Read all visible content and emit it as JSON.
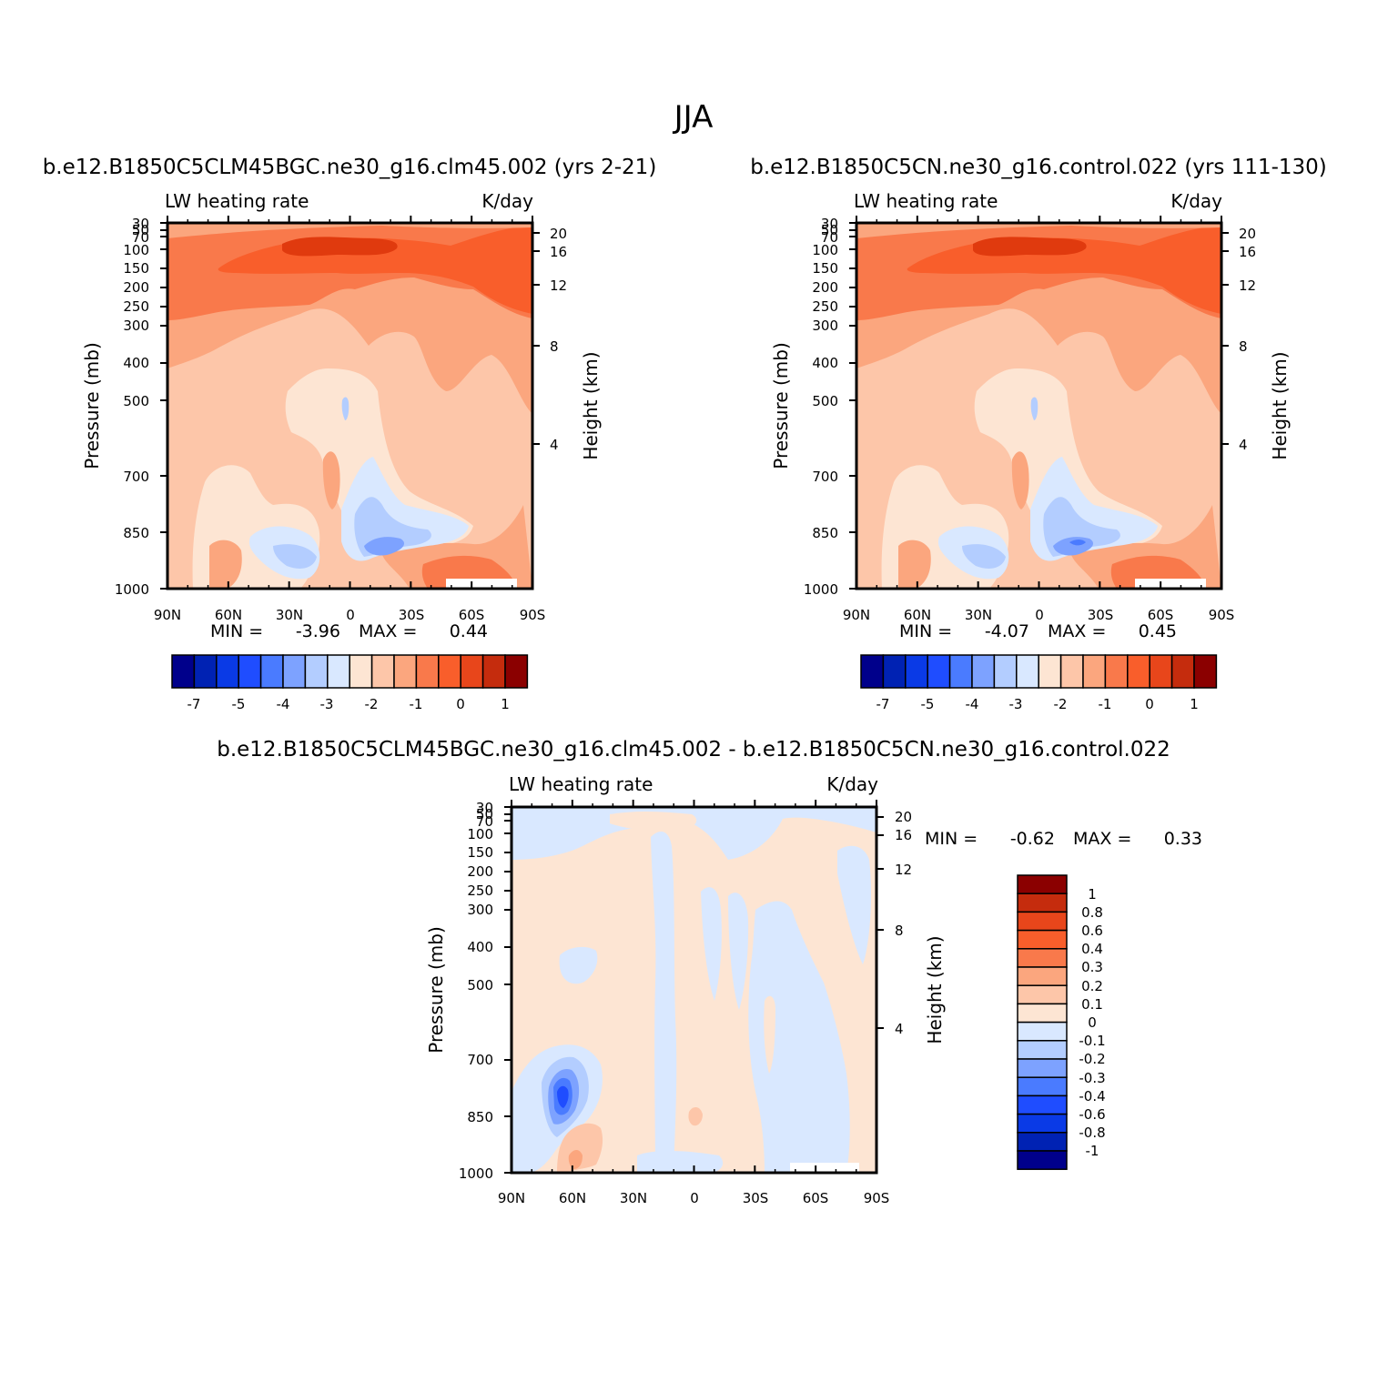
{
  "figure": {
    "season": "JJA",
    "colors": {
      "cold": [
        "#00008b",
        "#0022b3",
        "#0a3ae6",
        "#1f4dff",
        "#4a7bff",
        "#7da2ff",
        "#b3cdff",
        "#d9e8ff"
      ],
      "warm": [
        "#fde5d3",
        "#fdc6a9",
        "#fba67e",
        "#f9794b",
        "#f95e2b",
        "#e8461b",
        "#c52c0d",
        "#8b0000"
      ]
    }
  },
  "chart_data": [
    {
      "type": "contour",
      "name": "case",
      "title": "b.e12.B1850C5CLM45BGC.ne30_g16.clm45.002 (yrs 2-21)",
      "field_label": "LW heating rate",
      "units": "K/day",
      "ylabel": "Pressure (mb)",
      "ylabel_right": "Height (km)",
      "x_ticks": [
        "90N",
        "60N",
        "30N",
        "0",
        "30S",
        "60S",
        "90S"
      ],
      "y_ticks": [
        "30",
        "50",
        "70",
        "100",
        "150",
        "200",
        "250",
        "300",
        "400",
        "500",
        "700",
        "850",
        "1000"
      ],
      "height_ticks": [
        "20",
        "16",
        "12",
        "8",
        "4"
      ],
      "stats": {
        "min_label": "MIN =",
        "min": "-3.96",
        "max_label": "MAX =",
        "max": "0.44"
      },
      "colorbar": {
        "levels": [
          "-7",
          "-5",
          "-4",
          "-3",
          "-2",
          "-1",
          "0",
          "1"
        ]
      }
    },
    {
      "type": "contour",
      "name": "control",
      "title": "b.e12.B1850C5CN.ne30_g16.control.022 (yrs 111-130)",
      "field_label": "LW heating rate",
      "units": "K/day",
      "ylabel": "Pressure (mb)",
      "ylabel_right": "Height (km)",
      "x_ticks": [
        "90N",
        "60N",
        "30N",
        "0",
        "30S",
        "60S",
        "90S"
      ],
      "y_ticks": [
        "30",
        "50",
        "70",
        "100",
        "150",
        "200",
        "250",
        "300",
        "400",
        "500",
        "700",
        "850",
        "1000"
      ],
      "height_ticks": [
        "20",
        "16",
        "12",
        "8",
        "4"
      ],
      "stats": {
        "min_label": "MIN =",
        "min": "-4.07",
        "max_label": "MAX =",
        "max": "0.45"
      },
      "colorbar": {
        "levels": [
          "-7",
          "-5",
          "-4",
          "-3",
          "-2",
          "-1",
          "0",
          "1"
        ]
      }
    },
    {
      "type": "contour",
      "name": "difference",
      "title": "b.e12.B1850C5CLM45BGC.ne30_g16.clm45.002 - b.e12.B1850C5CN.ne30_g16.control.022",
      "field_label": "LW heating rate",
      "units": "K/day",
      "ylabel": "Pressure (mb)",
      "ylabel_right": "Height (km)",
      "x_ticks": [
        "90N",
        "60N",
        "30N",
        "0",
        "30S",
        "60S",
        "90S"
      ],
      "y_ticks": [
        "30",
        "50",
        "70",
        "100",
        "150",
        "200",
        "250",
        "300",
        "400",
        "500",
        "700",
        "850",
        "1000"
      ],
      "height_ticks": [
        "20",
        "16",
        "12",
        "8",
        "4"
      ],
      "stats": {
        "min_label": "MIN =",
        "min": "-0.62",
        "max_label": "MAX =",
        "max": "0.33"
      },
      "colorbar": {
        "levels": [
          "1",
          "0.8",
          "0.6",
          "0.4",
          "0.3",
          "0.2",
          "0.1",
          "0",
          "-0.1",
          "-0.2",
          "-0.3",
          "-0.4",
          "-0.6",
          "-0.8",
          "-1"
        ]
      }
    }
  ]
}
